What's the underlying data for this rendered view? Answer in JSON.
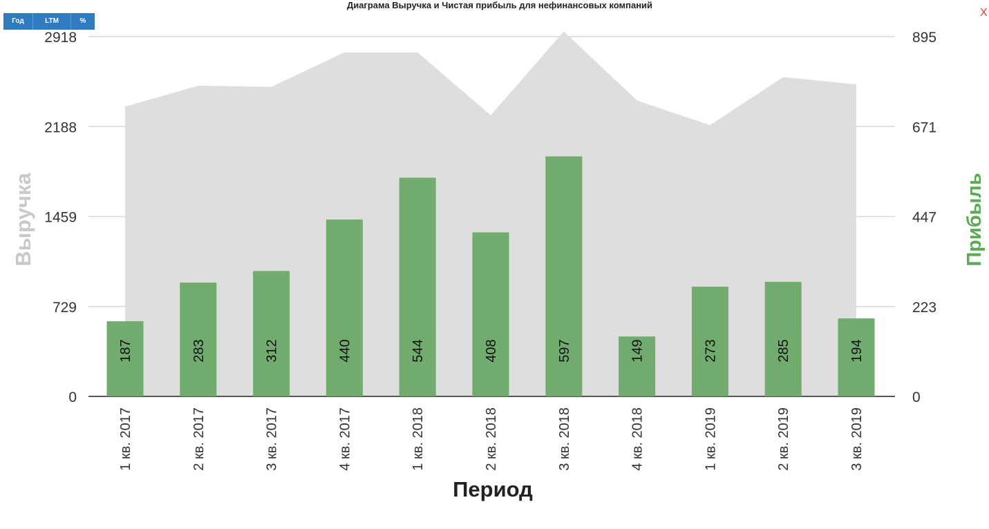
{
  "controls": {
    "year_label": "Год",
    "ltm_label": "LTM",
    "percent_label": "%",
    "close_label": "X"
  },
  "chart_data": {
    "type": "bar",
    "title": "Диаграма Выручка и Чистая прибыль для нефинансовых компаний",
    "xlabel": "Период",
    "ylabel_left": "Выручка",
    "ylabel_right": "Прибыль",
    "categories": [
      "1 кв. 2017",
      "2 кв. 2017",
      "3 кв. 2017",
      "4 кв. 2017",
      "1 кв. 2018",
      "2 кв. 2018",
      "3 кв. 2018",
      "4 кв. 2018",
      "1 кв. 2019",
      "2 кв. 2019",
      "3 кв. 2019"
    ],
    "left_axis": {
      "ticks": [
        "0",
        "729",
        "1459",
        "2188",
        "2918"
      ],
      "ylim": [
        0,
        2918
      ]
    },
    "right_axis": {
      "ticks": [
        "0",
        "223",
        "447",
        "671",
        "895"
      ],
      "ylim": [
        0,
        895
      ]
    },
    "series": [
      {
        "name": "Выручка",
        "kind": "area",
        "axis": "left",
        "color": "#dedede",
        "values": [
          2350,
          2520,
          2510,
          2790,
          2790,
          2280,
          2960,
          2400,
          2200,
          2590,
          2530
        ]
      },
      {
        "name": "Прибыль",
        "kind": "bar",
        "axis": "right",
        "color": "#6aa867",
        "values": [
          187,
          283,
          312,
          440,
          544,
          408,
          597,
          149,
          273,
          285,
          194
        ]
      }
    ],
    "grid": true,
    "colors": {
      "left_axis_label": "#c9c9c9",
      "right_axis_label": "#5caa56"
    }
  }
}
